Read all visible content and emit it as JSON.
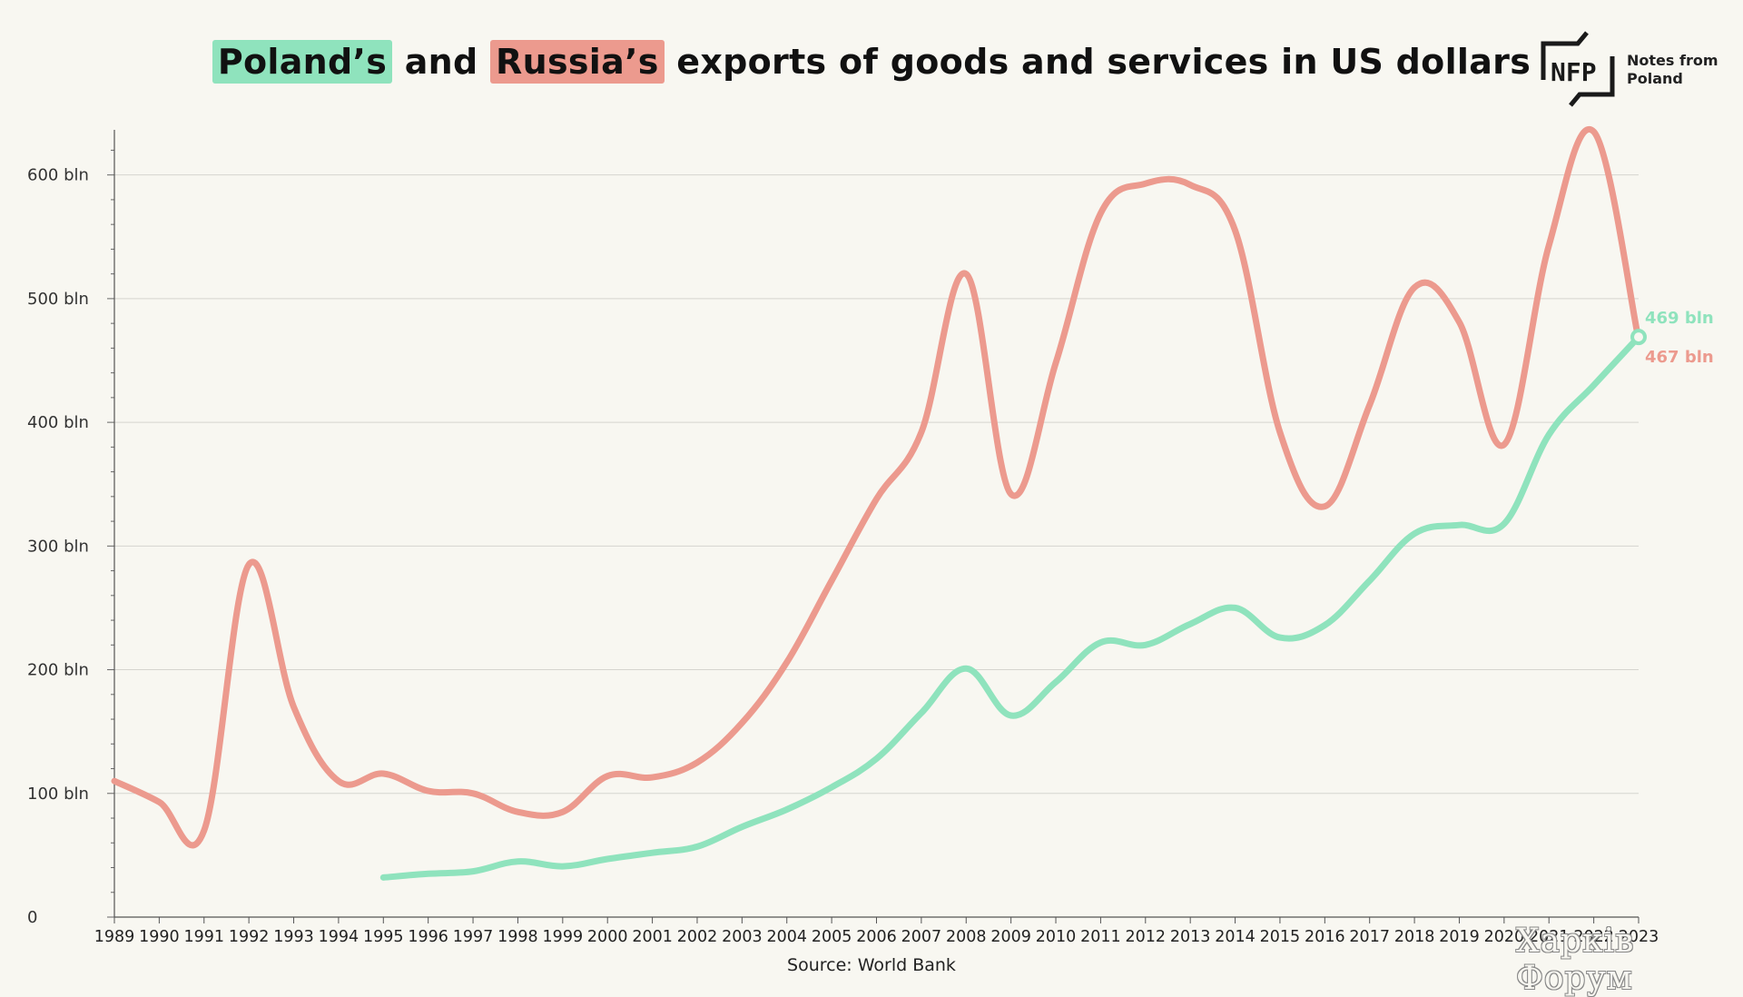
{
  "header": {
    "title_poland": "Poland’s",
    "title_and": " and ",
    "title_russia": "Russia’s",
    "title_rest": " exports of goods and services in US dollars"
  },
  "logo": {
    "mark": "NFP",
    "line1": "Notes from",
    "line2": "Poland"
  },
  "source": "Source: World Bank",
  "watermark": "Харків Форум",
  "colors": {
    "poland": "#8fe3bd",
    "russia": "#ec9a8e",
    "background": "#f8f7f1",
    "grid": "#d6d5cf"
  },
  "chart_data": {
    "type": "line",
    "title": "Poland’s and Russia’s exports of goods and services in US dollars",
    "xlabel": "",
    "ylabel": "",
    "x": [
      1989,
      1990,
      1991,
      1992,
      1993,
      1994,
      1995,
      1996,
      1997,
      1998,
      1999,
      2000,
      2001,
      2002,
      2003,
      2004,
      2005,
      2006,
      2007,
      2008,
      2009,
      2010,
      2011,
      2012,
      2013,
      2014,
      2015,
      2016,
      2017,
      2018,
      2019,
      2020,
      2021,
      2022,
      2023
    ],
    "x_tick_labels": [
      "1989",
      "1990",
      "1991",
      "1992",
      "1993",
      "1994",
      "1995",
      "1996",
      "1997",
      "1998",
      "1999",
      "2000",
      "2001",
      "2002",
      "2003",
      "2004",
      "2005",
      "2006",
      "2007",
      "2008",
      "2009",
      "2010",
      "2011",
      "2012",
      "2013",
      "2014",
      "2015",
      "2016",
      "2017",
      "2018",
      "2019",
      "2020",
      "2021",
      "2022",
      "2023"
    ],
    "y_ticks": [
      0,
      100,
      200,
      300,
      400,
      500,
      600
    ],
    "y_tick_labels": [
      "0",
      "100 bln",
      "200 bln",
      "300 bln",
      "400 bln",
      "500 bln",
      "600 bln"
    ],
    "ylim": [
      0,
      635
    ],
    "grid": true,
    "series": [
      {
        "name": "Poland’s",
        "color": "#8fe3bd",
        "values": [
          null,
          null,
          null,
          null,
          null,
          null,
          32,
          35,
          37,
          45,
          41,
          47,
          52,
          57,
          73,
          87,
          105,
          128,
          165,
          201,
          163,
          190,
          222,
          220,
          237,
          250,
          226,
          236,
          272,
          310,
          317,
          318,
          390,
          430,
          469
        ],
        "end_label": "469 bln"
      },
      {
        "name": "Russia’s",
        "color": "#ec9a8e",
        "values": [
          110,
          93,
          70,
          285,
          170,
          110,
          116,
          102,
          100,
          85,
          85,
          114,
          113,
          125,
          157,
          206,
          272,
          338,
          392,
          520,
          342,
          448,
          569,
          593,
          592,
          555,
          392,
          332,
          414,
          509,
          481,
          382,
          543,
          635,
          467
        ],
        "end_label": "467 bln"
      }
    ]
  }
}
